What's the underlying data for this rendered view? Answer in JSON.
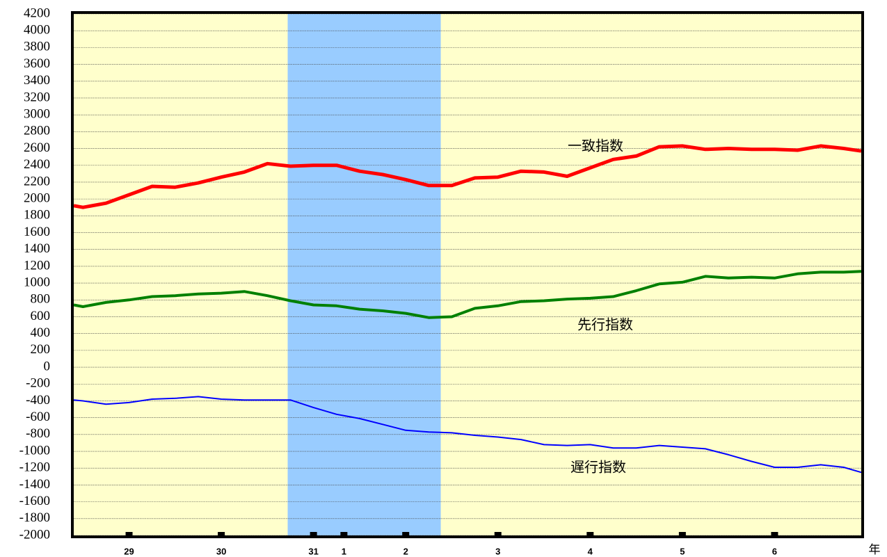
{
  "chart_data": {
    "type": "line",
    "x_label": "年",
    "xlim": [
      28.4,
      36.94
    ],
    "xticks": [
      {
        "value": 29,
        "label": "29"
      },
      {
        "value": 30,
        "label": "30"
      },
      {
        "value": 31,
        "label": "31"
      },
      {
        "value": 31.33,
        "label": "1"
      },
      {
        "value": 32,
        "label": "2"
      },
      {
        "value": 33,
        "label": "3"
      },
      {
        "value": 34,
        "label": "4"
      },
      {
        "value": 35,
        "label": "5"
      },
      {
        "value": 36,
        "label": "6"
      }
    ],
    "ylim": [
      -2000,
      4200
    ],
    "yticks": [
      -2000,
      -1800,
      -1600,
      -1400,
      -1200,
      -1000,
      -800,
      -600,
      -400,
      -200,
      0,
      200,
      400,
      600,
      800,
      1000,
      1200,
      1400,
      1600,
      1800,
      2000,
      2200,
      2400,
      2600,
      2800,
      3000,
      3200,
      3400,
      3600,
      3800,
      4000,
      4200
    ],
    "grid": true,
    "background": "#ffffcc",
    "shade": [
      30.72,
      32.38
    ],
    "shade_color": "#99ccff",
    "x": [
      28.4,
      28.5,
      28.75,
      29,
      29.25,
      29.5,
      29.75,
      30,
      30.25,
      30.5,
      30.75,
      31,
      31.25,
      31.5,
      31.75,
      32,
      32.25,
      32.5,
      32.75,
      33,
      33.25,
      33.5,
      33.75,
      34,
      34.25,
      34.5,
      34.75,
      35,
      35.25,
      35.5,
      35.75,
      36,
      36.25,
      36.5,
      36.75,
      36.94
    ],
    "series": [
      {
        "name": "一致指数",
        "color": "#ff0000",
        "width": 5,
        "values": [
          1920,
          1900,
          1950,
          2050,
          2150,
          2140,
          2190,
          2260,
          2320,
          2420,
          2390,
          2400,
          2400,
          2330,
          2290,
          2230,
          2160,
          2160,
          2250,
          2260,
          2330,
          2320,
          2270,
          2370,
          2470,
          2510,
          2620,
          2630,
          2590,
          2600,
          2590,
          2590,
          2580,
          2630,
          2600,
          2570
        ]
      },
      {
        "name": "先行指数",
        "color": "#008000",
        "width": 4,
        "values": [
          740,
          720,
          770,
          800,
          840,
          850,
          870,
          880,
          900,
          850,
          790,
          740,
          730,
          690,
          670,
          640,
          590,
          600,
          700,
          730,
          780,
          790,
          810,
          820,
          840,
          910,
          990,
          1010,
          1080,
          1060,
          1070,
          1060,
          1110,
          1130,
          1130,
          1140
        ]
      },
      {
        "name": "遅行指数",
        "color": "#0000ff",
        "width": 2,
        "values": [
          -390,
          -400,
          -440,
          -420,
          -380,
          -370,
          -350,
          -380,
          -390,
          -390,
          -390,
          -480,
          -560,
          -610,
          -680,
          -750,
          -770,
          -780,
          -810,
          -830,
          -860,
          -920,
          -930,
          -920,
          -960,
          -960,
          -930,
          -950,
          -970,
          -1040,
          -1120,
          -1190,
          -1190,
          -1160,
          -1190,
          -1250
        ]
      }
    ]
  }
}
